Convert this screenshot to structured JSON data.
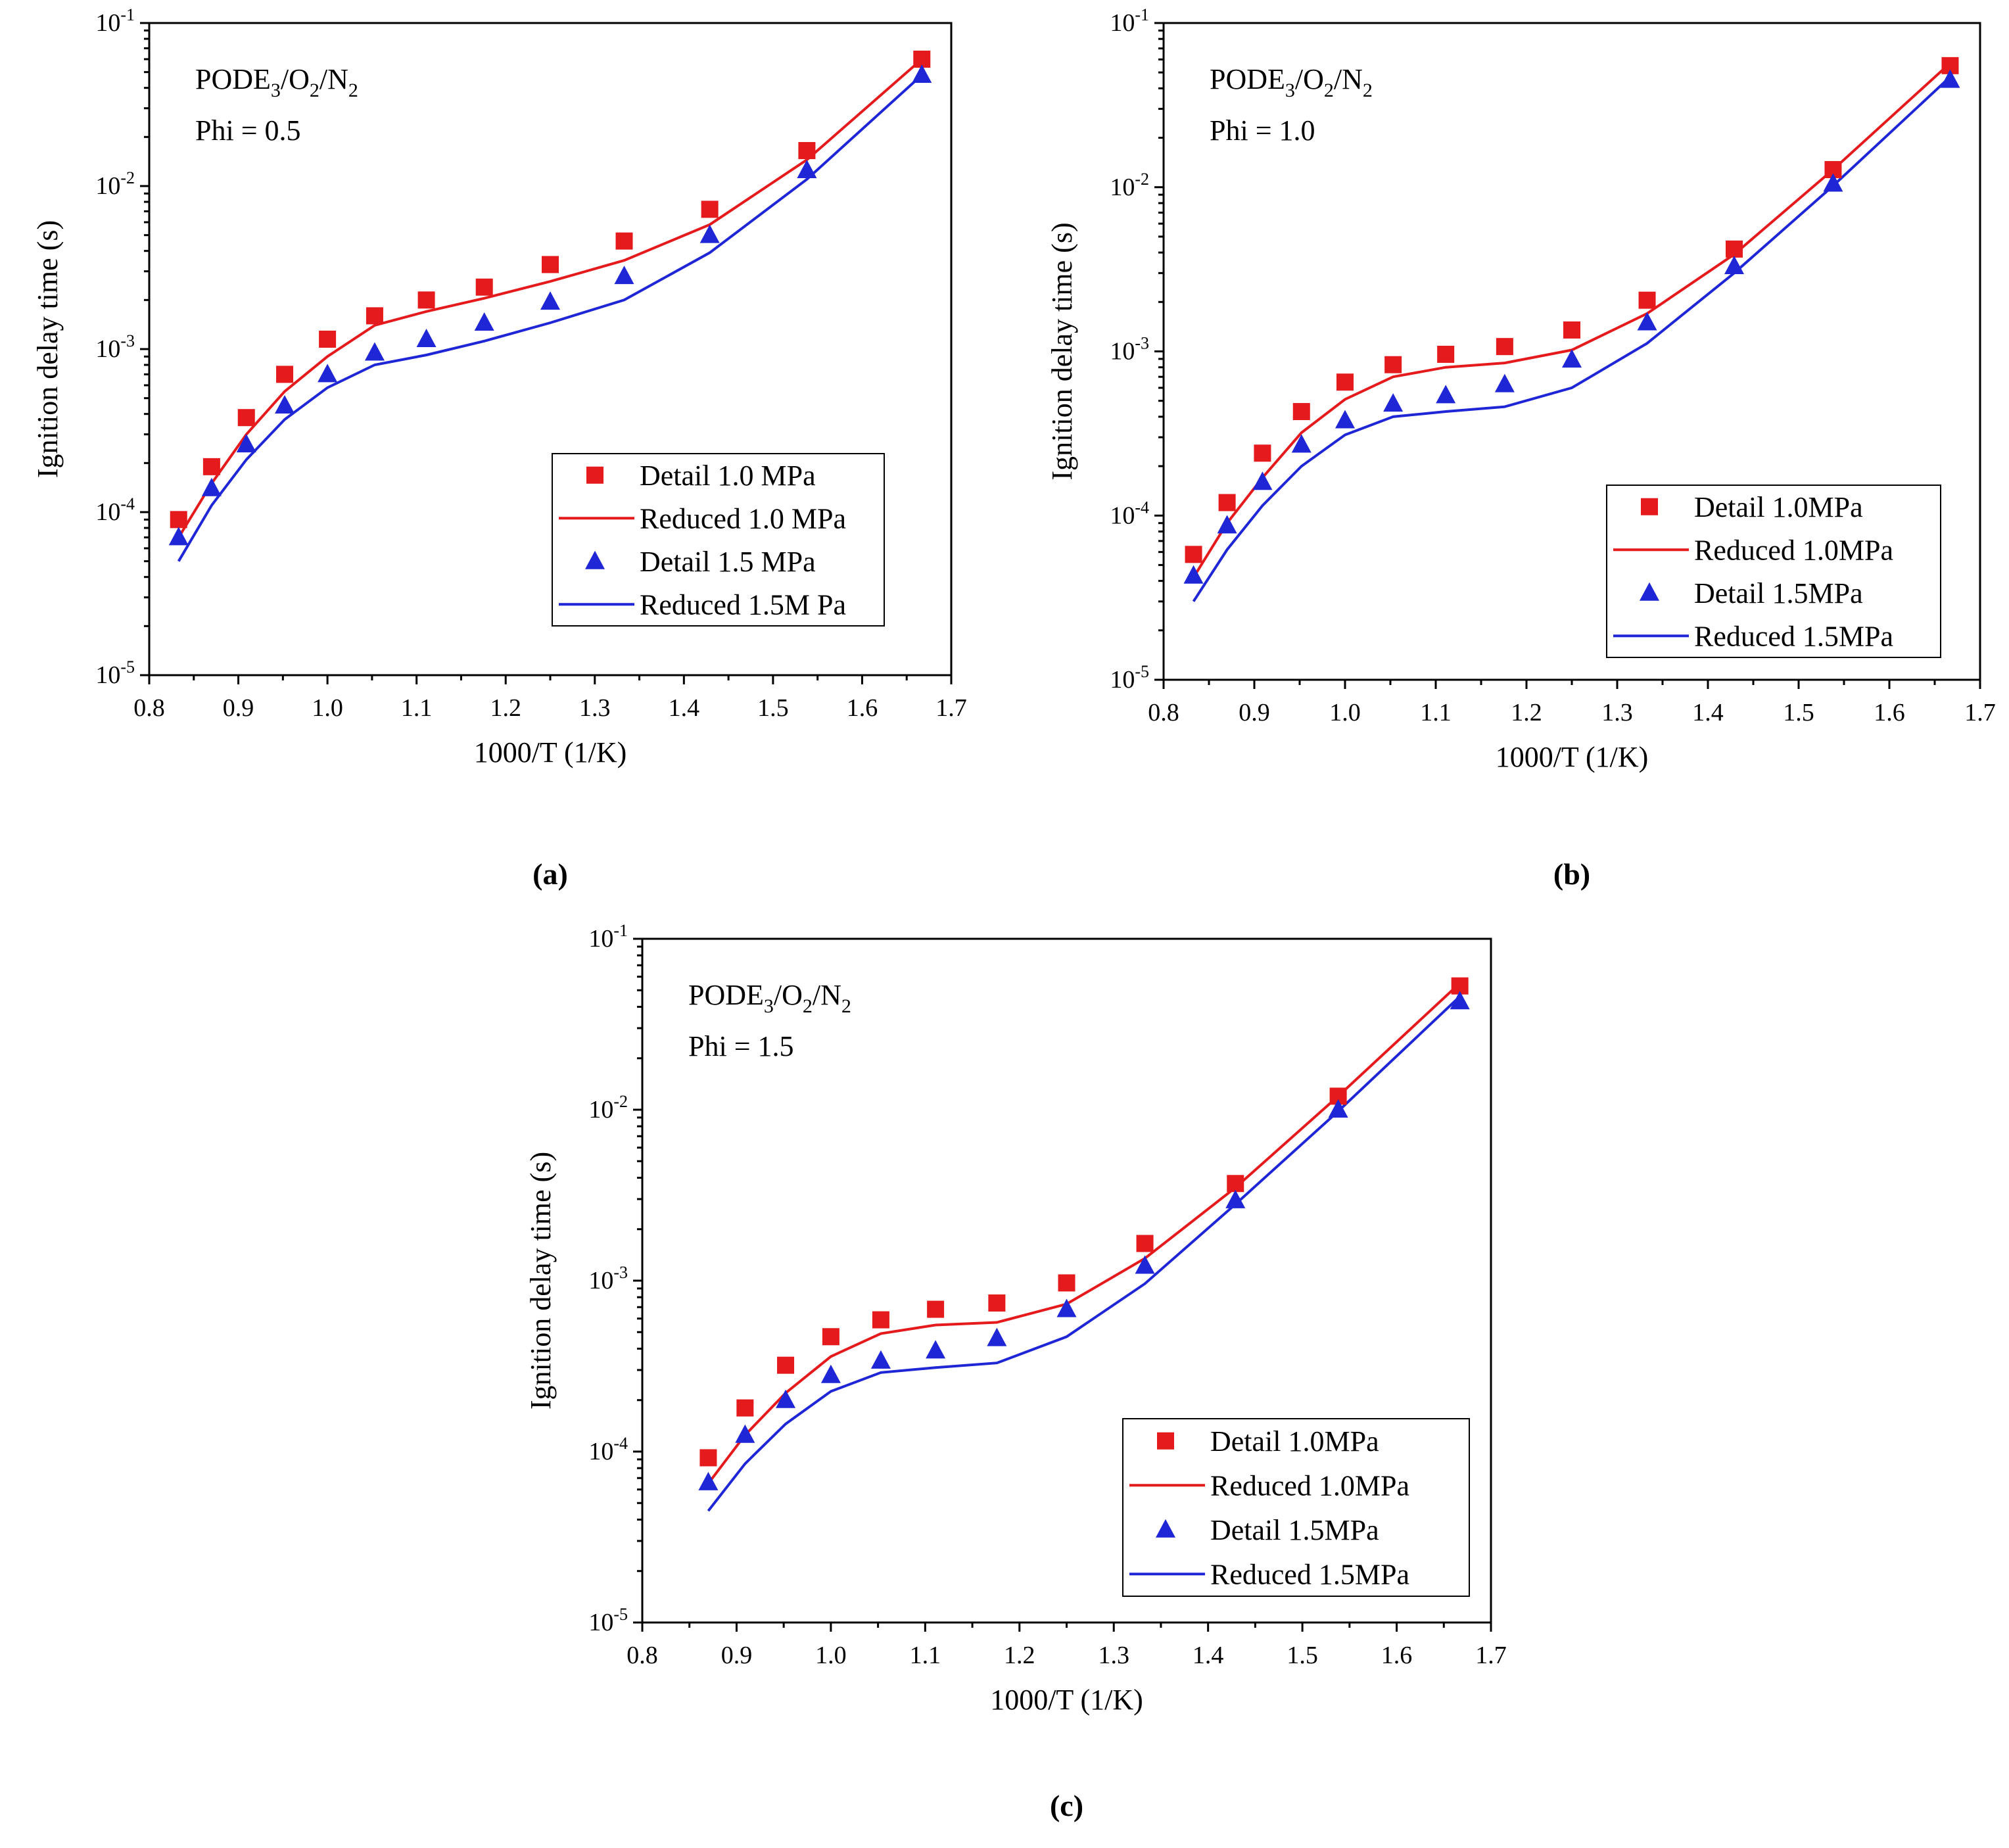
{
  "chart_data": [
    {
      "type": "line",
      "panel_label": "(a)",
      "annotation": {
        "base": "PODE",
        "sub1": "3",
        "sep1": "/O",
        "sub2": "2",
        "sep2": "/N",
        "sub3": "2",
        "phi": "Phi = 0.5"
      },
      "xlabel": "1000/T (1/K)",
      "ylabel": "Ignition delay time (s)",
      "xlim": [
        0.8,
        1.7
      ],
      "ylim": [
        1e-05,
        0.1
      ],
      "xticks": [
        "0.8",
        "0.9",
        "1.0",
        "1.1",
        "1.2",
        "1.3",
        "1.4",
        "1.5",
        "1.6",
        "1.7"
      ],
      "yticks": [
        {
          "base": "10",
          "exp": "-5"
        },
        {
          "base": "10",
          "exp": "-4"
        },
        {
          "base": "10",
          "exp": "-3"
        },
        {
          "base": "10",
          "exp": "-2"
        },
        {
          "base": "10",
          "exp": "-1"
        }
      ],
      "legend_position": "bottom-right",
      "series": [
        {
          "name": "Detail 1.0 MPa",
          "kind": "markers",
          "marker": "square",
          "color": "#e41a1c",
          "x": [
            0.833,
            0.87,
            0.909,
            0.952,
            1.0,
            1.053,
            1.111,
            1.176,
            1.25,
            1.333,
            1.429,
            1.538,
            1.667
          ],
          "y": [
            9e-05,
            0.00019,
            0.00038,
            0.0007,
            0.00115,
            0.0016,
            0.002,
            0.0024,
            0.0033,
            0.0046,
            0.0072,
            0.0165,
            0.06
          ]
        },
        {
          "name": "Reduced 1.0 MPa",
          "kind": "line",
          "color": "#e41a1c",
          "x": [
            0.833,
            0.87,
            0.909,
            0.952,
            1.0,
            1.053,
            1.111,
            1.176,
            1.25,
            1.333,
            1.429,
            1.538,
            1.667
          ],
          "y": [
            7e-05,
            0.00015,
            0.0003,
            0.00055,
            0.0009,
            0.0014,
            0.0017,
            0.00205,
            0.0026,
            0.0035,
            0.0058,
            0.0145,
            0.06
          ]
        },
        {
          "name": "Detail 1.5 MPa",
          "kind": "markers",
          "marker": "triangle",
          "color": "#1f26d6",
          "x": [
            0.833,
            0.87,
            0.909,
            0.952,
            1.0,
            1.053,
            1.111,
            1.176,
            1.25,
            1.333,
            1.429,
            1.538,
            1.667
          ],
          "y": [
            7e-05,
            0.00014,
            0.00026,
            0.00045,
            0.0007,
            0.00095,
            0.00115,
            0.00145,
            0.00195,
            0.0028,
            0.005,
            0.0125,
            0.048
          ]
        },
        {
          "name": "Reduced 1.5M Pa",
          "kind": "line",
          "color": "#1f26d6",
          "x": [
            0.833,
            0.87,
            0.909,
            0.952,
            1.0,
            1.053,
            1.111,
            1.176,
            1.25,
            1.333,
            1.429,
            1.538,
            1.667
          ],
          "y": [
            5e-05,
            0.00011,
            0.00021,
            0.00037,
            0.00058,
            0.0008,
            0.00092,
            0.00112,
            0.00145,
            0.002,
            0.0039,
            0.011,
            0.048
          ]
        }
      ]
    },
    {
      "type": "line",
      "panel_label": "(b)",
      "annotation": {
        "base": "PODE",
        "sub1": "3",
        "sep1": "/O",
        "sub2": "2",
        "sep2": "/N",
        "sub3": "2",
        "phi": "Phi = 1.0"
      },
      "xlabel": "1000/T (1/K)",
      "ylabel": "Ignition delay time (s)",
      "xlim": [
        0.8,
        1.7
      ],
      "ylim": [
        1e-05,
        0.1
      ],
      "xticks": [
        "0.8",
        "0.9",
        "1.0",
        "1.1",
        "1.2",
        "1.3",
        "1.4",
        "1.5",
        "1.6",
        "1.7"
      ],
      "yticks": [
        {
          "base": "10",
          "exp": "-5"
        },
        {
          "base": "10",
          "exp": "-4"
        },
        {
          "base": "10",
          "exp": "-3"
        },
        {
          "base": "10",
          "exp": "-2"
        },
        {
          "base": "10",
          "exp": "-1"
        }
      ],
      "legend_position": "bottom-right",
      "series": [
        {
          "name": "Detail 1.0MPa",
          "kind": "markers",
          "marker": "square",
          "color": "#e41a1c",
          "x": [
            0.833,
            0.87,
            0.909,
            0.952,
            1.0,
            1.053,
            1.111,
            1.176,
            1.25,
            1.333,
            1.429,
            1.538,
            1.667
          ],
          "y": [
            5.8e-05,
            0.00012,
            0.00024,
            0.00043,
            0.00065,
            0.00083,
            0.00096,
            0.00107,
            0.00135,
            0.00205,
            0.0042,
            0.0128,
            0.055
          ]
        },
        {
          "name": "Reduced 1.0MPa",
          "kind": "line",
          "color": "#e41a1c",
          "x": [
            0.833,
            0.87,
            0.909,
            0.952,
            1.0,
            1.053,
            1.111,
            1.176,
            1.25,
            1.333,
            1.429,
            1.538,
            1.667
          ],
          "y": [
            4.2e-05,
            9e-05,
            0.00017,
            0.00032,
            0.00051,
            0.0007,
            0.0008,
            0.00085,
            0.00102,
            0.0017,
            0.0039,
            0.0128,
            0.057
          ]
        },
        {
          "name": "Detail 1.5MPa",
          "kind": "markers",
          "marker": "triangle",
          "color": "#1f26d6",
          "x": [
            0.833,
            0.87,
            0.909,
            0.952,
            1.0,
            1.053,
            1.111,
            1.176,
            1.25,
            1.333,
            1.429,
            1.538,
            1.667
          ],
          "y": [
            4.3e-05,
            8.7e-05,
            0.00016,
            0.00027,
            0.00038,
            0.00048,
            0.00054,
            0.00063,
            0.00089,
            0.0015,
            0.0033,
            0.0105,
            0.045
          ]
        },
        {
          "name": "Reduced 1.5MPa",
          "kind": "line",
          "color": "#1f26d6",
          "x": [
            0.833,
            0.87,
            0.909,
            0.952,
            1.0,
            1.053,
            1.111,
            1.176,
            1.25,
            1.333,
            1.429,
            1.538,
            1.667
          ],
          "y": [
            3e-05,
            6.2e-05,
            0.000115,
            0.0002,
            0.00031,
            0.0004,
            0.00043,
            0.00046,
            0.0006,
            0.00112,
            0.003,
            0.0102,
            0.047
          ]
        }
      ]
    },
    {
      "type": "line",
      "panel_label": "(c)",
      "annotation": {
        "base": "PODE",
        "sub1": "3",
        "sep1": "/O",
        "sub2": "2",
        "sep2": "/N",
        "sub3": "2",
        "phi": "Phi = 1.5"
      },
      "xlabel": "1000/T (1/K)",
      "ylabel": "Ignition delay time (s)",
      "xlim": [
        0.8,
        1.7
      ],
      "ylim": [
        1e-05,
        0.1
      ],
      "xticks": [
        "0.8",
        "0.9",
        "1.0",
        "1.1",
        "1.2",
        "1.3",
        "1.4",
        "1.5",
        "1.6",
        "1.7"
      ],
      "yticks": [
        {
          "base": "10",
          "exp": "-5"
        },
        {
          "base": "10",
          "exp": "-4"
        },
        {
          "base": "10",
          "exp": "-3"
        },
        {
          "base": "10",
          "exp": "-2"
        },
        {
          "base": "10",
          "exp": "-1"
        }
      ],
      "legend_position": "bottom-right",
      "series": [
        {
          "name": "Detail 1.0MPa",
          "kind": "markers",
          "marker": "square",
          "color": "#e41a1c",
          "x": [
            0.87,
            0.909,
            0.952,
            1.0,
            1.053,
            1.111,
            1.176,
            1.25,
            1.333,
            1.429,
            1.538,
            1.667
          ],
          "y": [
            9.2e-05,
            0.00018,
            0.00032,
            0.00047,
            0.00059,
            0.00068,
            0.00074,
            0.00097,
            0.00165,
            0.0037,
            0.012,
            0.053
          ]
        },
        {
          "name": "Reduced 1.0MPa",
          "kind": "line",
          "color": "#e41a1c",
          "x": [
            0.87,
            0.909,
            0.952,
            1.0,
            1.053,
            1.111,
            1.176,
            1.25,
            1.333,
            1.429,
            1.538,
            1.667
          ],
          "y": [
            6.5e-05,
            0.000125,
            0.00022,
            0.00036,
            0.00049,
            0.00055,
            0.00057,
            0.00073,
            0.00135,
            0.0035,
            0.012,
            0.055
          ]
        },
        {
          "name": "Detail 1.5MPa",
          "kind": "markers",
          "marker": "triangle",
          "color": "#1f26d6",
          "x": [
            0.87,
            0.909,
            0.952,
            1.0,
            1.053,
            1.111,
            1.176,
            1.25,
            1.333,
            1.429,
            1.538,
            1.667
          ],
          "y": [
            6.6e-05,
            0.000125,
            0.0002,
            0.00028,
            0.00034,
            0.00039,
            0.00046,
            0.00068,
            0.00122,
            0.00295,
            0.01,
            0.043
          ]
        },
        {
          "name": "Reduced 1.5MPa",
          "kind": "line",
          "color": "#1f26d6",
          "x": [
            0.87,
            0.909,
            0.952,
            1.0,
            1.053,
            1.111,
            1.176,
            1.25,
            1.333,
            1.429,
            1.538,
            1.667
          ],
          "y": [
            4.5e-05,
            8.5e-05,
            0.000145,
            0.000225,
            0.00029,
            0.00031,
            0.00033,
            0.00047,
            0.00096,
            0.0028,
            0.0098,
            0.046
          ]
        }
      ]
    }
  ]
}
